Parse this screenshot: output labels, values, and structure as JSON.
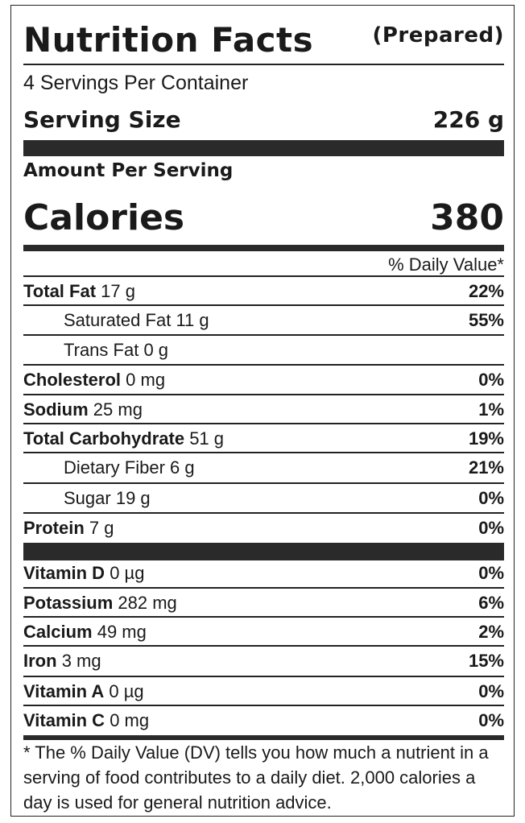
{
  "title": "Nutrition Facts",
  "subtitle": "(Prepared)",
  "servings_per_container": "4 Servings Per Container",
  "serving_size": {
    "label": "Serving Size",
    "value": "226 g"
  },
  "amount_per_serving": "Amount Per Serving",
  "calories": {
    "label": "Calories",
    "value": "380"
  },
  "daily_value_header": "% Daily Value*",
  "nutrients": [
    {
      "name": "Total Fat",
      "amount": "17 g",
      "dv": "22%",
      "bold": true,
      "indent": false
    },
    {
      "name": "Saturated Fat",
      "amount": "11 g",
      "dv": "55%",
      "bold": false,
      "indent": true
    },
    {
      "name": "Trans Fat",
      "amount": "0 g",
      "dv": "",
      "bold": false,
      "indent": true
    },
    {
      "name": "Cholesterol",
      "amount": "0 mg",
      "dv": "0%",
      "bold": true,
      "indent": false
    },
    {
      "name": "Sodium",
      "amount": "25 mg",
      "dv": "1%",
      "bold": true,
      "indent": false
    },
    {
      "name": "Total Carbohydrate",
      "amount": "51 g",
      "dv": "19%",
      "bold": true,
      "indent": false
    },
    {
      "name": "Dietary Fiber",
      "amount": "6 g",
      "dv": "21%",
      "bold": false,
      "indent": true
    },
    {
      "name": "Sugar",
      "amount": "19 g",
      "dv": "0%",
      "bold": false,
      "indent": true
    },
    {
      "name": "Protein",
      "amount": "7 g",
      "dv": "0%",
      "bold": true,
      "indent": false
    }
  ],
  "vitamins": [
    {
      "name": "Vitamin D",
      "amount": "0 µg",
      "dv": "0%"
    },
    {
      "name": "Potassium",
      "amount": "282 mg",
      "dv": "6%"
    },
    {
      "name": "Calcium",
      "amount": "49 mg",
      "dv": "2%"
    },
    {
      "name": "Iron",
      "amount": "3 mg",
      "dv": "15%"
    },
    {
      "name": "Vitamin A",
      "amount": "0 µg",
      "dv": "0%"
    },
    {
      "name": "Vitamin C",
      "amount": "0 mg",
      "dv": "0%"
    }
  ],
  "footnote": "* The % Daily Value (DV) tells you how much a nutrient in a serving of food contributes to a daily diet. 2,000 calories a day is used for general nutrition advice."
}
